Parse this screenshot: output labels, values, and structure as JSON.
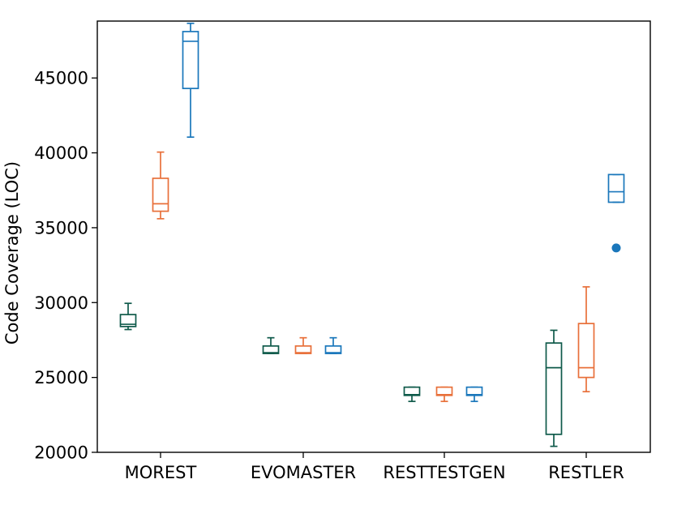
{
  "chart_data": {
    "type": "boxplot",
    "title": "",
    "xlabel": "",
    "ylabel": "Code Coverage (LOC)",
    "ylim": [
      20000,
      48800
    ],
    "yticks": [
      20000,
      25000,
      30000,
      35000,
      40000,
      45000
    ],
    "categories": [
      "MOREST",
      "EVOMASTER",
      "RESTTESTGEN",
      "RESTLER"
    ],
    "series_colors": [
      "#0f5a4a",
      "#e8703a",
      "#1a77bb"
    ],
    "groups": [
      {
        "category": "MOREST",
        "boxes": [
          {
            "whisker_low": 28200,
            "q1": 28400,
            "median": 28550,
            "q3": 29200,
            "whisker_high": 29950,
            "outliers": []
          },
          {
            "whisker_low": 35600,
            "q1": 36100,
            "median": 36600,
            "q3": 38300,
            "whisker_high": 40050,
            "outliers": []
          },
          {
            "whisker_low": 41050,
            "q1": 44300,
            "median": 47450,
            "q3": 48100,
            "whisker_high": 48650,
            "outliers": []
          }
        ]
      },
      {
        "category": "EVOMASTER",
        "boxes": [
          {
            "whisker_low": 26600,
            "q1": 26600,
            "median": 26650,
            "q3": 27100,
            "whisker_high": 27650,
            "outliers": []
          },
          {
            "whisker_low": 26600,
            "q1": 26600,
            "median": 26650,
            "q3": 27100,
            "whisker_high": 27650,
            "outliers": []
          },
          {
            "whisker_low": 26600,
            "q1": 26600,
            "median": 26650,
            "q3": 27100,
            "whisker_high": 27650,
            "outliers": []
          }
        ]
      },
      {
        "category": "RESTTESTGEN",
        "boxes": [
          {
            "whisker_low": 23400,
            "q1": 23800,
            "median": 23850,
            "q3": 24350,
            "whisker_high": 24350,
            "outliers": []
          },
          {
            "whisker_low": 23400,
            "q1": 23800,
            "median": 23850,
            "q3": 24350,
            "whisker_high": 24350,
            "outliers": []
          },
          {
            "whisker_low": 23400,
            "q1": 23800,
            "median": 23850,
            "q3": 24350,
            "whisker_high": 24350,
            "outliers": []
          }
        ]
      },
      {
        "category": "RESTLER",
        "boxes": [
          {
            "whisker_low": 20400,
            "q1": 21200,
            "median": 25650,
            "q3": 27300,
            "whisker_high": 28150,
            "outliers": []
          },
          {
            "whisker_low": 24050,
            "q1": 25000,
            "median": 25650,
            "q3": 28600,
            "whisker_high": 31050,
            "outliers": []
          },
          {
            "whisker_low": 36700,
            "q1": 36700,
            "median": 37400,
            "q3": 38550,
            "whisker_high": 38550,
            "outliers": [
              33650
            ]
          }
        ]
      }
    ]
  }
}
